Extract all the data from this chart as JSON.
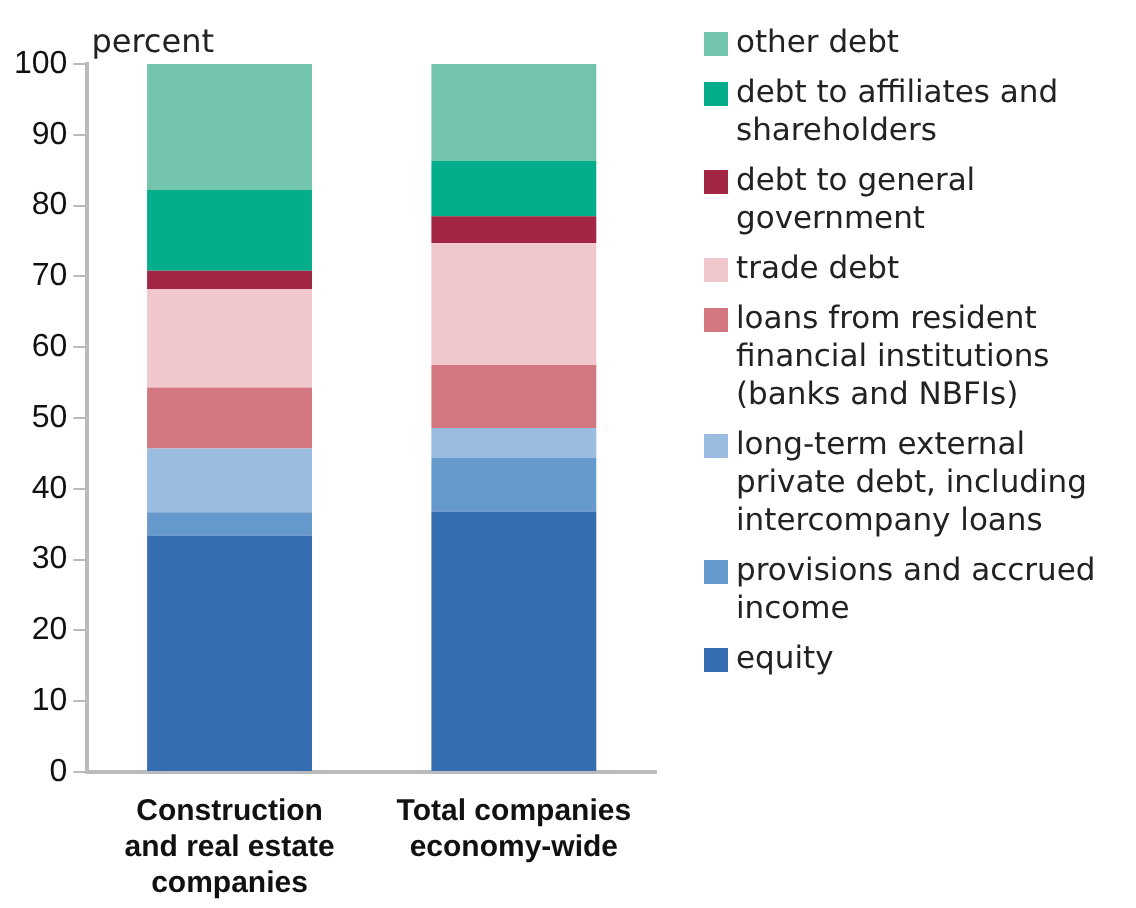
{
  "chart_data": {
    "type": "bar",
    "stacked": true,
    "ylabel": "percent",
    "categories": [
      "Construction and real estate companies",
      "Total companies economy-wide"
    ],
    "series": [
      {
        "name": "equity",
        "color": "#346db0",
        "values": [
          33.4,
          36.8
        ]
      },
      {
        "name": "provisions and accrued income",
        "color": "#6699cc",
        "values": [
          3.3,
          7.6
        ]
      },
      {
        "name": "long-term external private debt, including intercompany loans",
        "color": "#99bce0",
        "values": [
          9.0,
          4.2
        ]
      },
      {
        "name": "loans from resident financial institutions (banks and NBFIs)",
        "color": "#d37880",
        "values": [
          8.6,
          8.9
        ]
      },
      {
        "name": "trade debt",
        "color": "#f0c7cc",
        "values": [
          13.9,
          17.2
        ]
      },
      {
        "name": "debt to general government",
        "color": "#a32544",
        "values": [
          2.6,
          3.8
        ]
      },
      {
        "name": "debt to affiliates and shareholders",
        "color": "#05ae8b",
        "values": [
          11.4,
          7.8
        ]
      },
      {
        "name": "other debt",
        "color": "#72c4ad",
        "values": [
          17.8,
          13.7
        ]
      }
    ],
    "ylim": [
      0,
      100
    ],
    "yticks": [
      0,
      10,
      20,
      30,
      40,
      50,
      60,
      70,
      80,
      90,
      100
    ],
    "grid": false,
    "legend": "right"
  }
}
